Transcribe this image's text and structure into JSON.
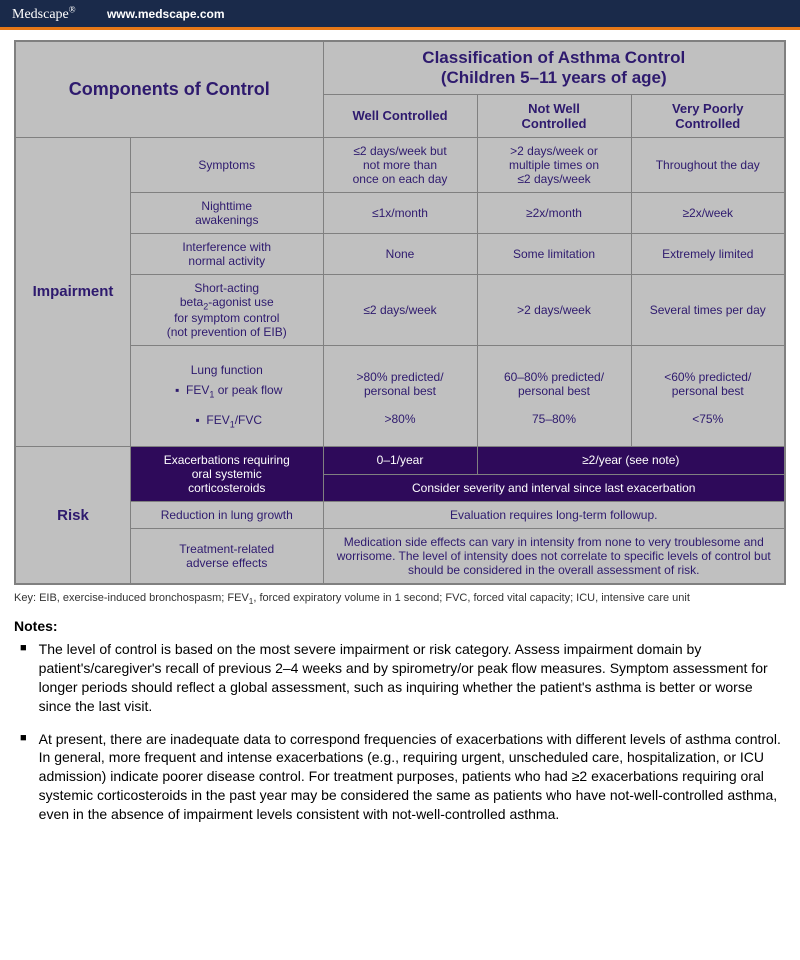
{
  "topbar": {
    "brand": "Medscape",
    "reg": "®",
    "url": "www.medscape.com"
  },
  "headers": {
    "components": "Components of Control",
    "classification": "Classification of Asthma Control<br>(Children 5–11 years of age)",
    "well": "Well Controlled",
    "notwell": "Not Well<br>Controlled",
    "poor": "Very Poorly<br>Controlled"
  },
  "impairment": {
    "label": "Impairment",
    "symptoms": {
      "name": "Symptoms",
      "well": "≤2 days/week but<br>not more than<br>once on each day",
      "notwell": ">2 days/week or<br>multiple times on<br>≤2 days/week",
      "poor": "Throughout the day"
    },
    "night": {
      "name": "Nighttime<br>awakenings",
      "well": "≤1x/month",
      "notwell": "≥2x/month",
      "poor": "≥2x/week"
    },
    "interf": {
      "name": "Interference with<br>normal activity",
      "well": "None",
      "notwell": "Some limitation",
      "poor": "Extremely limited"
    },
    "saba": {
      "name": "Short-acting<br>beta<sub>2</sub>-agonist use<br>for symptom control<br>(not prevention of EIB)",
      "well": "≤2 days/week",
      "notwell": ">2 days/week",
      "poor": "Several times per day"
    },
    "lung": {
      "name": "Lung function",
      "fev": "FEV<sub>1</sub> or peak flow",
      "ratio": "FEV<sub>1</sub>/FVC",
      "well_fev": ">80% predicted/<br>personal best",
      "notwell_fev": "60–80% predicted/<br>personal best",
      "poor_fev": "<60% predicted/<br>personal best",
      "well_r": ">80%",
      "notwell_r": "75–80%",
      "poor_r": "<75%"
    }
  },
  "risk": {
    "label": "Risk",
    "exac": {
      "name": "Exacerbations requiring<br>oral systemic<br>corticosteroids",
      "well": "0–1/year",
      "rest": "≥2/year (see note)",
      "note": "Consider severity and interval since last exacerbation"
    },
    "growth": {
      "name": "Reduction in lung growth",
      "text": "Evaluation requires long-term followup."
    },
    "adverse": {
      "name": "Treatment-related<br>adverse effects",
      "text": "Medication side effects can vary in intensity from none to very troublesome and worrisome. The level of intensity does not correlate to specific levels of control but should be considered in the overall assessment of risk."
    }
  },
  "key": "Key:  EIB, exercise-induced bronchospasm; FEV<sub>1</sub>, forced expiratory volume in 1 second; FVC, forced vital capacity; ICU, intensive care unit",
  "notes": {
    "heading": "Notes:",
    "n1": "The level of control is based on the most severe impairment or risk category.  Assess impairment domain by patient's/caregiver's recall of previous 2–4 weeks and by spirometry/or peak flow measures.  Symptom assessment for longer periods should reflect a global assessment, such as inquiring whether the patient's asthma is better or worse since the last visit.",
    "n2": "At present, there are inadequate data to correspond frequencies of exacerbations with different levels of asthma control.  In general, more frequent and intense exacerbations (e.g., requiring urgent, unscheduled care, hospitalization, or ICU admission) indicate poorer disease control.  For treatment purposes, patients who had ≥2 exacerbations requiring oral systemic corticosteroids in the past year may be considered the same as patients who have not-well-controlled asthma, even in the absence of impairment levels consistent with not-well-controlled asthma."
  }
}
